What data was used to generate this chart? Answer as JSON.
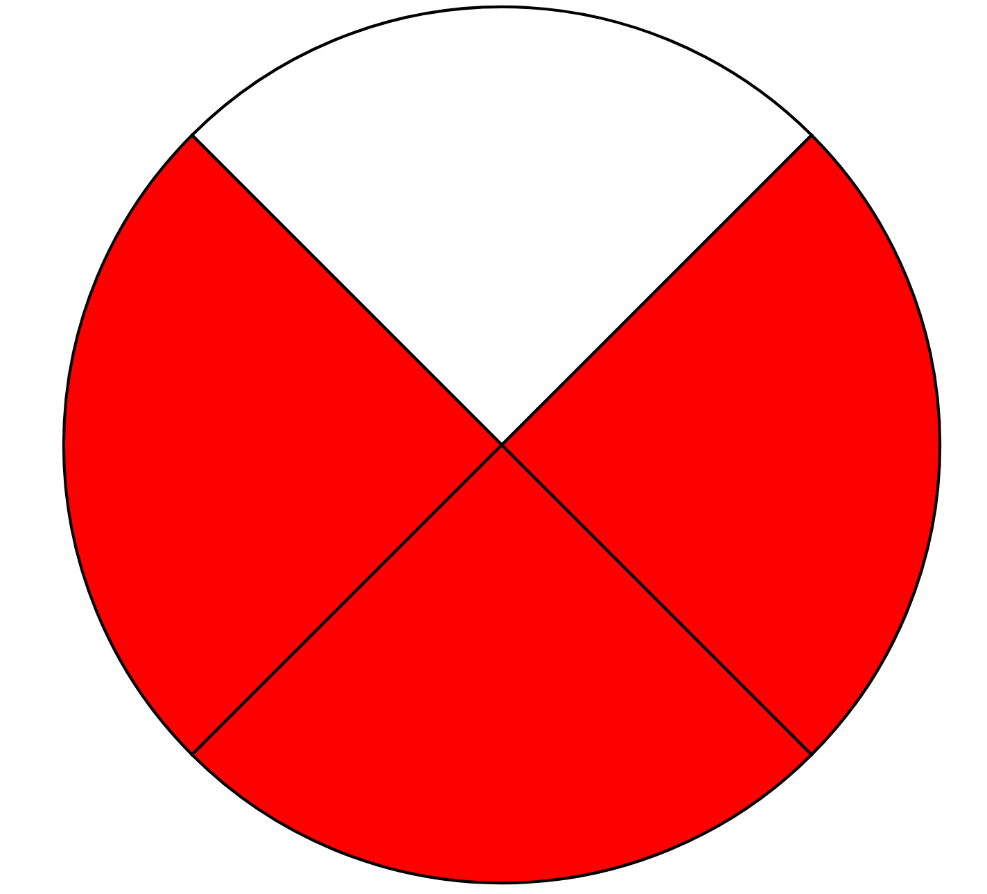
{
  "chart_data": {
    "type": "pie",
    "categories": [
      null,
      null,
      null,
      null
    ],
    "values": [
      25,
      25,
      25,
      25
    ],
    "colors": [
      "#ffffff",
      "#ff0000",
      "#ff0000",
      "#ff0000"
    ]
  }
}
